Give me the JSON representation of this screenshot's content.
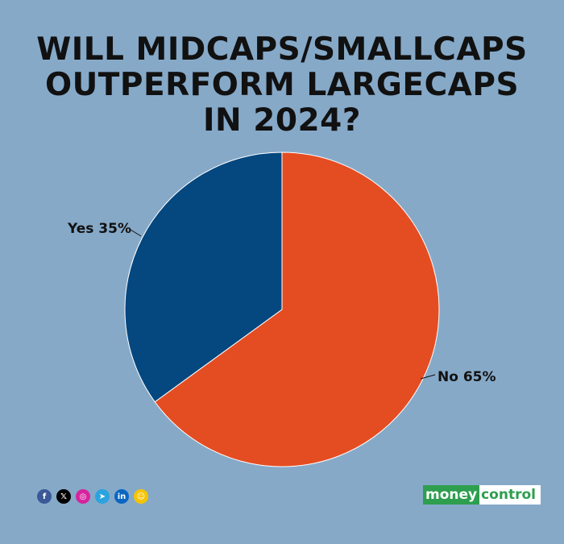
{
  "chart_data": {
    "type": "pie",
    "title_lines": [
      "WILL MIDCAPS/SMALLCAPS",
      "OUTPERFORM LARGECAPS",
      "IN 2024?"
    ],
    "slices": [
      {
        "label": "No 65%",
        "category": "No",
        "value": 65,
        "color": "#e44d22"
      },
      {
        "label": "Yes 35%",
        "category": "Yes",
        "value": 35,
        "color": "#05477f"
      }
    ],
    "start": "top",
    "direction": "clockwise"
  },
  "footer": {
    "social_icons": [
      {
        "name": "facebook-icon",
        "glyph": "f",
        "color": "#3b5998"
      },
      {
        "name": "x-icon",
        "glyph": "𝕏",
        "color": "#000000"
      },
      {
        "name": "instagram-icon",
        "glyph": "◎",
        "color": "#d6249f"
      },
      {
        "name": "telegram-icon",
        "glyph": "➤",
        "color": "#2aa3df"
      },
      {
        "name": "linkedin-icon",
        "glyph": "in",
        "color": "#0a66c2"
      },
      {
        "name": "snapchat-icon",
        "glyph": "☺",
        "color": "#f5c400"
      }
    ],
    "brand_part1": "money",
    "brand_part2": "control"
  }
}
